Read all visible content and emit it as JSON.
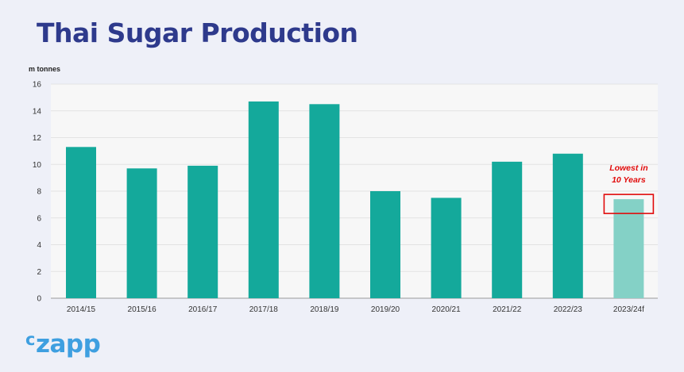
{
  "header": {
    "title": "Thai Sugar Production"
  },
  "logo": {
    "c": "c",
    "rest": "zapp"
  },
  "colors": {
    "bar": "#14a99b",
    "forecast_bar": "#84d1c6",
    "plot_bg": "#f7f7f7",
    "grid": "#e3e3e3",
    "annotation": "#e10b0b",
    "title": "#2e3a8c",
    "logo": "#3e9fe0"
  },
  "chart_data": {
    "type": "bar",
    "title": "Thai Sugar Production",
    "ylabel": "m tonnes",
    "xlabel": "",
    "categories": [
      "2014/15",
      "2015/16",
      "2016/17",
      "2017/18",
      "2018/19",
      "2019/20",
      "2020/21",
      "2021/22",
      "2022/23",
      "2023/24f"
    ],
    "values": [
      11.3,
      9.7,
      9.9,
      14.7,
      14.5,
      8.0,
      7.5,
      10.2,
      10.8,
      7.4
    ],
    "forecast": [
      false,
      false,
      false,
      false,
      false,
      false,
      false,
      false,
      false,
      true
    ],
    "ylim": [
      0,
      16
    ],
    "yticks": [
      0,
      2,
      4,
      6,
      8,
      10,
      12,
      14,
      16
    ],
    "grid": true,
    "legend": "none",
    "annotation": {
      "lines": [
        "Lowest in",
        "10 Years"
      ],
      "category": "2023/24f"
    }
  }
}
